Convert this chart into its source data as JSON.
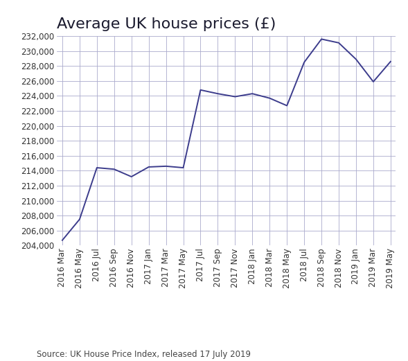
{
  "title": "Average UK house prices (£)",
  "source": "Source: UK House Price Index, released 17 July 2019",
  "line_color": "#3c3c8c",
  "background_color": "#ffffff",
  "grid_color": "#aaaacc",
  "x_labels": [
    "2016 Mar",
    "2016 May",
    "2016 Jul",
    "2016 Sep",
    "2016 Nov",
    "2017 Jan",
    "2017 Mar",
    "2017 May",
    "2017 Jul",
    "2017 Sep",
    "2017 Nov",
    "2018 Jan",
    "2018 Mar",
    "2018 May",
    "2018 Jul",
    "2018 Sep",
    "2018 Nov",
    "2019 Jan",
    "2019 Mar",
    "2019 May"
  ],
  "values": [
    204700,
    207500,
    214400,
    214200,
    213200,
    214500,
    214600,
    214400,
    224800,
    224300,
    223900,
    224300,
    223700,
    222700,
    228500,
    231600,
    231100,
    228900,
    225900,
    228600
  ],
  "ylim": [
    204000,
    232000
  ],
  "yticks": [
    204000,
    206000,
    208000,
    210000,
    212000,
    214000,
    216000,
    218000,
    220000,
    222000,
    224000,
    226000,
    228000,
    230000,
    232000
  ],
  "title_fontsize": 16,
  "tick_fontsize": 8.5,
  "source_fontsize": 8.5,
  "line_width": 1.4,
  "title_color": "#1a1a2e",
  "tick_color": "#333333",
  "source_color": "#444444"
}
